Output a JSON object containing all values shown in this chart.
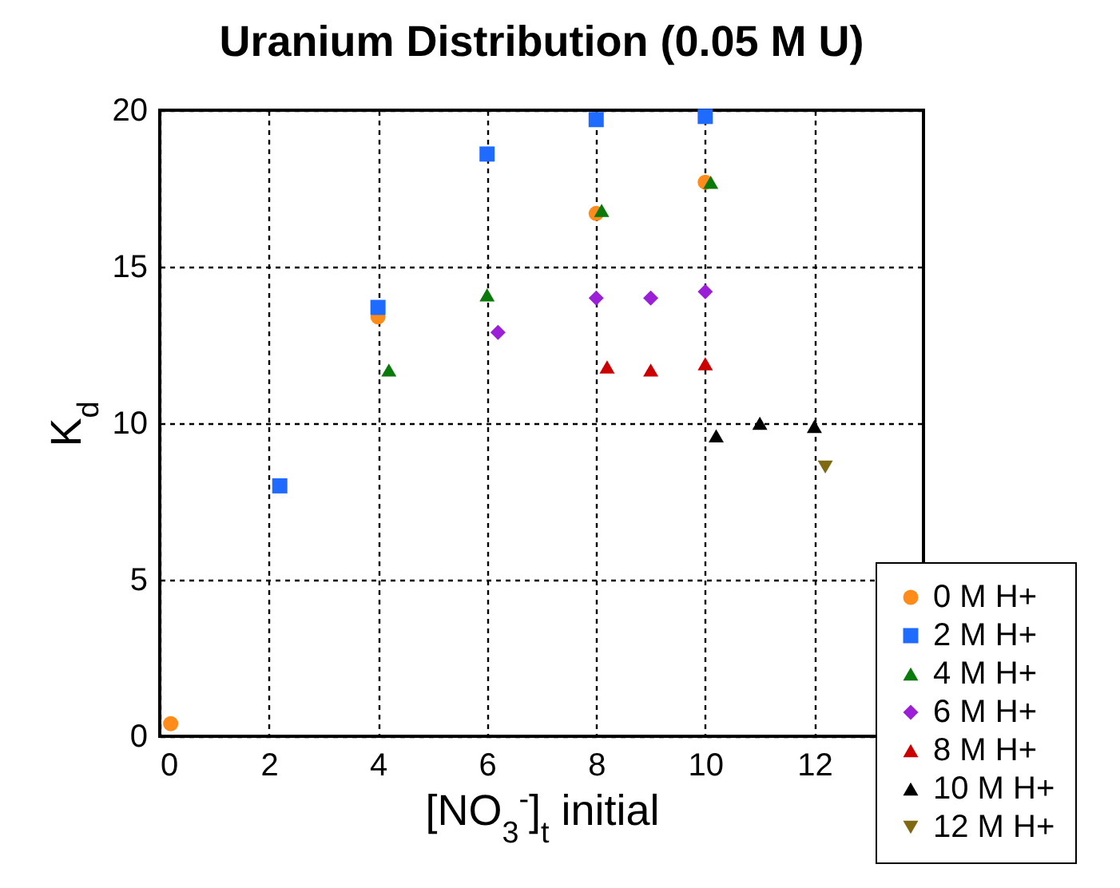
{
  "chart_data": {
    "type": "scatter",
    "title": "Uranium Distribution (0.05 M U)",
    "xlabel": "[NO$_{3}$$^{-}$]$_{t}$ initial",
    "ylabel": "K$_{d}$",
    "xlim": [
      0,
      14
    ],
    "xticks": [
      0,
      2,
      4,
      6,
      8,
      10,
      12
    ],
    "ylim": [
      0,
      20
    ],
    "yticks": [
      0,
      5,
      10,
      15,
      20
    ],
    "grid": true,
    "legend": "bottom right",
    "series": [
      {
        "name": "0 M H+",
        "color": "#ff8c1a",
        "marker": "circle",
        "x": [
          0.2,
          4,
          8,
          10
        ],
        "values": [
          0.4,
          13.4,
          16.7,
          17.7
        ]
      },
      {
        "name": "2 M H+",
        "color": "#1f6bff",
        "marker": "square",
        "x": [
          2.2,
          4,
          6,
          8,
          10
        ],
        "values": [
          8.0,
          13.7,
          18.6,
          19.7,
          19.8
        ]
      },
      {
        "name": "4 M H+",
        "color": "#0a7a0a",
        "marker": "triangle",
        "x": [
          4.2,
          6,
          8.1,
          10.1
        ],
        "values": [
          11.7,
          14.1,
          16.8,
          17.7
        ]
      },
      {
        "name": "6 M H+",
        "color": "#9a1fd6",
        "marker": "diamond",
        "x": [
          6.2,
          8,
          9,
          10
        ],
        "values": [
          12.9,
          14.0,
          14.0,
          14.2
        ]
      },
      {
        "name": "8 M H+",
        "color": "#cc0000",
        "marker": "triangle",
        "x": [
          8.2,
          9,
          10
        ],
        "values": [
          11.8,
          11.7,
          11.9
        ]
      },
      {
        "name": "10 M H+",
        "color": "#000000",
        "marker": "triangle",
        "x": [
          10.2,
          11,
          12
        ],
        "values": [
          9.6,
          10.0,
          9.9
        ]
      },
      {
        "name": "12 M H+",
        "color": "#7f6a12",
        "marker": "triangle-down",
        "x": [
          12.2
        ],
        "values": [
          8.6
        ]
      }
    ]
  }
}
